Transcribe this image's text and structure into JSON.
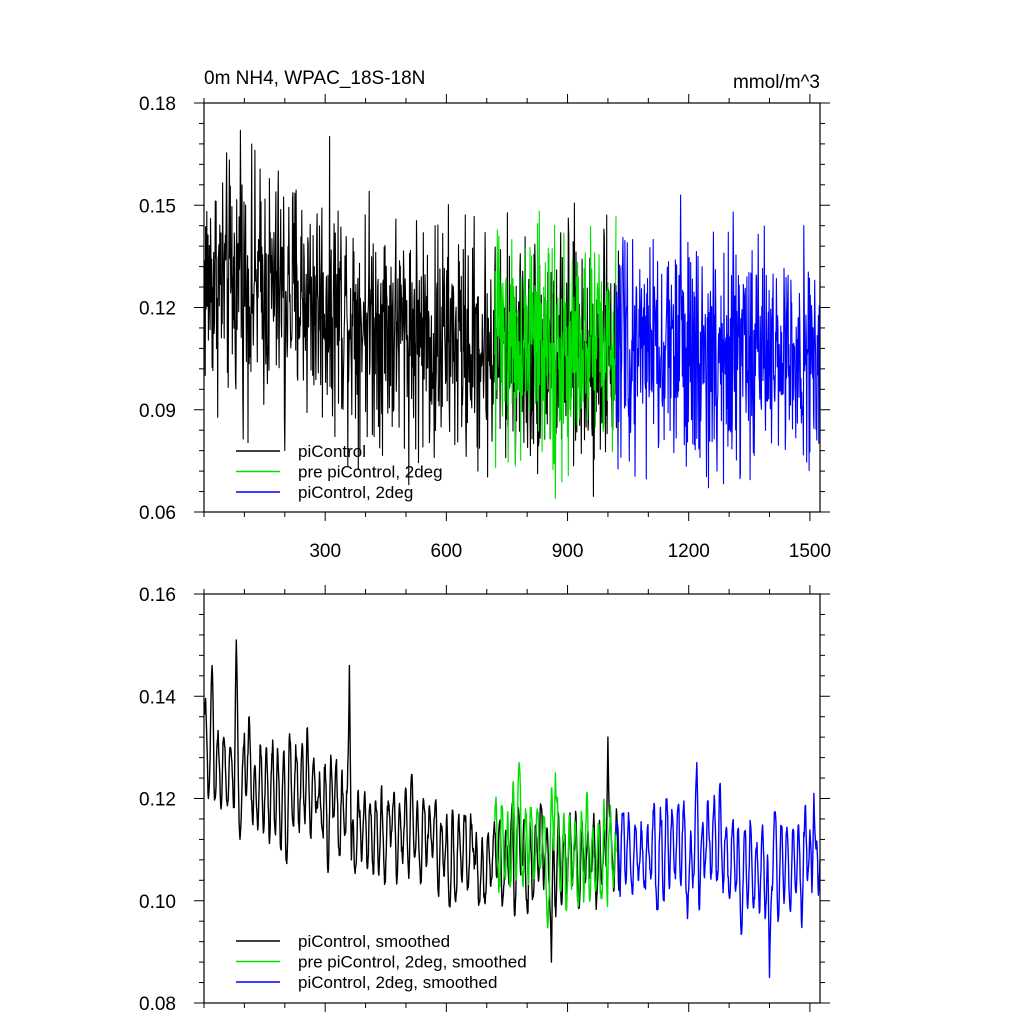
{
  "chart_data": [
    {
      "type": "line",
      "title": "0m NH4, WPAC_18S-18N",
      "units": "mmol/m^3",
      "xlim": [
        0,
        1525
      ],
      "ylim": [
        0.06,
        0.18
      ],
      "x_ticks": [
        300,
        600,
        900,
        1200,
        1500
      ],
      "y_ticks": [
        0.06,
        0.09,
        0.12,
        0.15,
        0.18
      ],
      "y_tick_labels": [
        "0.06",
        "0.09",
        "0.12",
        "0.15",
        "0.18"
      ],
      "legend_position": "bottom-left",
      "series": [
        {
          "name": "piControl",
          "color": "#000000",
          "x_start": 1,
          "x_end": 1030,
          "mean": 0.112,
          "amplitude": 0.017,
          "trend": [
            [
              1,
              0.128
            ],
            [
              200,
              0.125
            ],
            [
              500,
              0.113
            ],
            [
              700,
              0.108
            ],
            [
              1030,
              0.106
            ]
          ],
          "peaks": [
            [
              90,
              0.172
            ],
            [
              200,
              0.078
            ],
            [
              570,
              0.076
            ],
            [
              870,
              0.08
            ],
            [
              990,
              0.143
            ]
          ]
        },
        {
          "name": "pre piControl, 2deg",
          "color": "#00e000",
          "x_start": 720,
          "x_end": 1020,
          "mean": 0.108,
          "amplitude": 0.016,
          "trend": [
            [
              720,
              0.11
            ],
            [
              1020,
              0.108
            ]
          ],
          "peaks": [
            [
              870,
              0.064
            ],
            [
              730,
              0.141
            ]
          ]
        },
        {
          "name": "piControl, 2deg",
          "color": "#0000ff",
          "x_start": 1020,
          "x_end": 1525,
          "mean": 0.107,
          "amplitude": 0.016,
          "trend": [
            [
              1020,
              0.108
            ],
            [
              1525,
              0.106
            ]
          ],
          "peaks": [
            [
              1180,
              0.153
            ],
            [
              1310,
              0.148
            ],
            [
              1270,
              0.072
            ]
          ]
        }
      ]
    },
    {
      "type": "line",
      "title": "",
      "xlim": [
        0,
        1525
      ],
      "ylim": [
        0.08,
        0.16
      ],
      "x_ticks": [
        300,
        600,
        900,
        1200,
        1500
      ],
      "y_ticks": [
        0.08,
        0.1,
        0.12,
        0.14,
        0.16
      ],
      "y_tick_labels": [
        "0.08",
        "0.10",
        "0.12",
        "0.14",
        "0.16"
      ],
      "legend_position": "bottom-left",
      "series": [
        {
          "name": "piControl, smoothed",
          "color": "#000000",
          "x_start": 1,
          "x_end": 1030,
          "mean": 0.112,
          "amplitude": 0.008,
          "trend": [
            [
              1,
              0.128
            ],
            [
              200,
              0.121
            ],
            [
              500,
              0.112
            ],
            [
              700,
              0.109
            ],
            [
              1030,
              0.108
            ]
          ],
          "peaks": [
            [
              80,
              0.151
            ],
            [
              20,
              0.146
            ],
            [
              360,
              0.146
            ],
            [
              860,
              0.088
            ],
            [
              1000,
              0.132
            ]
          ]
        },
        {
          "name": "pre piControl, 2deg, smoothed",
          "color": "#00e000",
          "x_start": 720,
          "x_end": 1020,
          "mean": 0.109,
          "amplitude": 0.008,
          "trend": [
            [
              720,
              0.11
            ],
            [
              1020,
              0.109
            ]
          ],
          "peaks": [
            [
              780,
              0.127
            ],
            [
              870,
              0.125
            ]
          ]
        },
        {
          "name": "piControl, 2deg, smoothed",
          "color": "#0000ff",
          "x_start": 1020,
          "x_end": 1525,
          "mean": 0.108,
          "amplitude": 0.008,
          "trend": [
            [
              1020,
              0.11
            ],
            [
              1525,
              0.107
            ]
          ],
          "peaks": [
            [
              1220,
              0.127
            ],
            [
              1400,
              0.085
            ],
            [
              1510,
              0.121
            ]
          ]
        }
      ]
    }
  ]
}
